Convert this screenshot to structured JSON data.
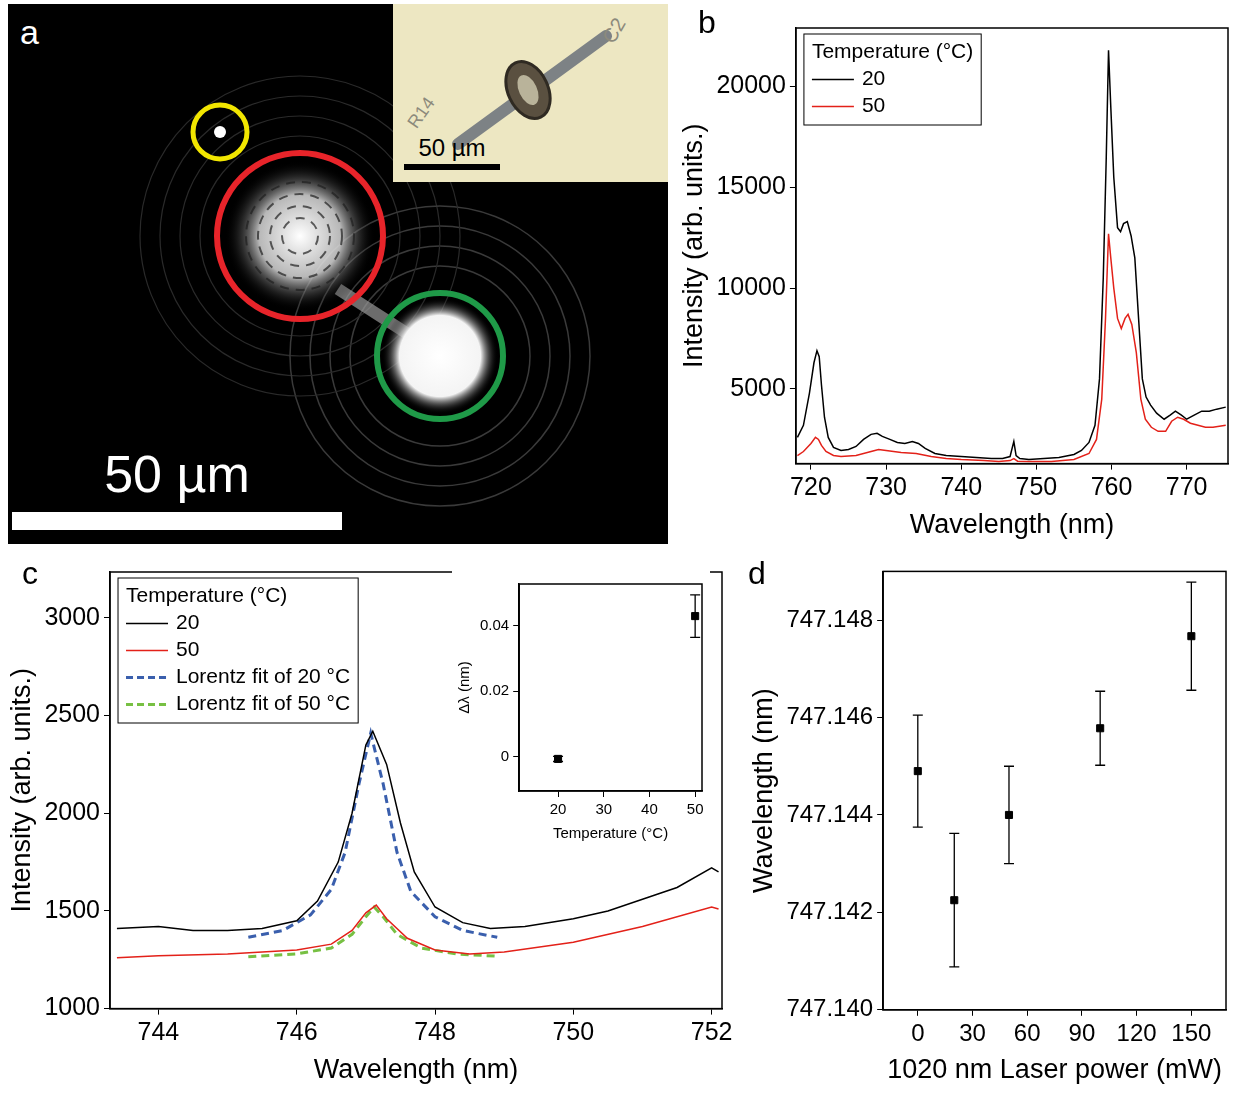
{
  "chart_data": [
    {
      "panel": "a",
      "type": "image",
      "scale_bar": "50 µm",
      "inset": {
        "scale_bar": "50 µm",
        "marks": [
          "C2",
          "R14"
        ]
      }
    },
    {
      "panel": "b",
      "type": "line",
      "x_label": "Wavelength (nm)",
      "y_label": "Intensity (arb. units.)",
      "xlim": [
        718,
        775.5
      ],
      "xticks": [
        720,
        730,
        740,
        750,
        760,
        770
      ],
      "ylim": [
        1300,
        22900
      ],
      "yticks": [
        5000,
        10000,
        15000,
        20000
      ],
      "grid": false,
      "legend": "upper left",
      "legend_title": "Temperature (°C)",
      "series": [
        {
          "name": "20",
          "color": "#000000",
          "x": [
            718.2,
            719,
            719.8,
            720.4,
            720.8,
            721.1,
            721.4,
            721.8,
            722.3,
            723,
            724,
            725,
            726,
            727,
            728,
            728.8,
            729.5,
            730.5,
            731.5,
            732.5,
            733.5,
            734.3,
            735.2,
            736.5,
            738,
            740,
            742,
            744,
            745.5,
            746.5,
            747,
            747.3,
            747.8,
            749,
            751,
            753,
            755,
            756,
            757,
            757.8,
            758.4,
            758.9,
            759.3,
            759.6,
            759.9,
            760.3,
            760.8,
            761.2,
            761.6,
            762.1,
            762.6,
            763.1,
            763.6,
            764.1,
            764.6,
            765.2,
            766,
            767,
            767.8,
            768.5,
            769.3,
            770,
            771,
            772,
            773,
            774,
            775.2
          ],
          "values": [
            2600,
            3200,
            4800,
            6300,
            6900,
            6600,
            5200,
            3600,
            2600,
            2100,
            1950,
            2000,
            2150,
            2500,
            2750,
            2800,
            2650,
            2500,
            2350,
            2300,
            2400,
            2300,
            2050,
            1800,
            1700,
            1650,
            1600,
            1550,
            1550,
            1650,
            2400,
            1700,
            1550,
            1500,
            1550,
            1600,
            1750,
            1950,
            2350,
            3200,
            5500,
            10500,
            16500,
            21800,
            19000,
            15500,
            13000,
            12800,
            13200,
            13300,
            12600,
            11500,
            8500,
            5500,
            4600,
            4200,
            3800,
            3500,
            3700,
            3900,
            3700,
            3500,
            3700,
            3900,
            3900,
            4000,
            4100
          ]
        },
        {
          "name": "50",
          "color": "#e32119",
          "x": [
            718.2,
            719,
            720,
            720.6,
            721,
            721.4,
            722,
            723,
            724,
            726,
            728,
            729,
            730,
            732,
            734,
            736,
            738,
            740,
            743,
            745,
            746.5,
            747,
            747.5,
            749,
            752,
            755,
            757,
            758,
            758.7,
            759.2,
            759.6,
            759.9,
            760.3,
            760.8,
            761.3,
            761.8,
            762.2,
            762.7,
            763.3,
            763.9,
            764.5,
            765.3,
            766.2,
            767.2,
            768,
            768.8,
            769.6,
            770.5,
            771.5,
            772.5,
            773.5,
            775.2
          ],
          "values": [
            1700,
            1900,
            2300,
            2600,
            2500,
            2200,
            1900,
            1700,
            1650,
            1700,
            1900,
            2000,
            1950,
            1850,
            1800,
            1650,
            1550,
            1500,
            1450,
            1400,
            1450,
            1550,
            1420,
            1400,
            1400,
            1500,
            1800,
            2500,
            4500,
            8500,
            12700,
            11500,
            10000,
            8500,
            8000,
            8500,
            8700,
            8200,
            6800,
            4500,
            3500,
            3100,
            2900,
            2900,
            3400,
            3600,
            3500,
            3300,
            3200,
            3100,
            3100,
            3200
          ]
        }
      ]
    },
    {
      "panel": "c",
      "type": "line",
      "x_label": "Wavelength (nm)",
      "y_label": "Intensity (arb. units.)",
      "xlim": [
        743.3,
        752.15
      ],
      "xticks": [
        744,
        746,
        748,
        750,
        752
      ],
      "ylim": [
        1000,
        3235
      ],
      "yticks": [
        1000,
        1500,
        2000,
        2500,
        3000
      ],
      "grid": false,
      "legend": "upper left",
      "legend_title": "Temperature (°C)",
      "series": [
        {
          "name": "20",
          "color": "#000000",
          "x": [
            743.4,
            744,
            744.5,
            745,
            745.5,
            746,
            746.3,
            746.6,
            746.8,
            747,
            747.1,
            747.3,
            747.5,
            747.7,
            748,
            748.4,
            748.8,
            749.3,
            750,
            750.5,
            751,
            751.5,
            752,
            752.1
          ],
          "values": [
            1410,
            1420,
            1400,
            1400,
            1410,
            1450,
            1550,
            1750,
            2000,
            2350,
            2420,
            2250,
            1950,
            1700,
            1520,
            1440,
            1410,
            1420,
            1460,
            1500,
            1560,
            1620,
            1720,
            1700
          ]
        },
        {
          "name": "50",
          "color": "#e32119",
          "x": [
            743.4,
            744,
            745,
            746,
            746.5,
            746.8,
            747,
            747.15,
            747.3,
            747.6,
            748,
            748.5,
            749,
            750,
            751,
            752,
            752.1
          ],
          "values": [
            1260,
            1270,
            1280,
            1300,
            1330,
            1400,
            1490,
            1530,
            1460,
            1360,
            1300,
            1280,
            1290,
            1340,
            1420,
            1520,
            1510
          ]
        },
        {
          "name": "Lorentz fit of 20 °C",
          "color": "#3a5fad",
          "line_style": "dashed",
          "x": [
            745.3,
            745.8,
            746.2,
            746.5,
            746.7,
            746.9,
            747.07,
            747.25,
            747.45,
            747.65,
            748,
            748.4,
            748.9
          ],
          "values": [
            1365,
            1400,
            1480,
            1610,
            1800,
            2150,
            2410,
            2150,
            1800,
            1600,
            1470,
            1400,
            1365
          ]
        },
        {
          "name": "Lorentz fit of 50 °C",
          "color": "#77c043",
          "line_style": "dashed",
          "x": [
            745.3,
            746,
            746.5,
            746.8,
            747,
            747.12,
            747.25,
            747.45,
            747.8,
            748.3,
            748.9
          ],
          "values": [
            1265,
            1280,
            1310,
            1380,
            1470,
            1520,
            1470,
            1380,
            1310,
            1280,
            1268
          ]
        }
      ],
      "inset": {
        "type": "scatter",
        "x_label": "Temperature (°C)",
        "y_label": "Δλ (nm)",
        "xlim": [
          11.5,
          51.5
        ],
        "xticks": [
          20,
          30,
          40,
          50
        ],
        "ylim": [
          -0.0105,
          0.0527
        ],
        "yticks": [
          0,
          0.02,
          0.04
        ],
        "grid": false,
        "marker": "square",
        "color": "#000000",
        "x": [
          20,
          50
        ],
        "values": [
          -0.0007,
          0.0429
        ],
        "error": [
          0.0008,
          0.0065
        ]
      }
    },
    {
      "panel": "d",
      "type": "scatter",
      "x_label": "1020 nm Laser power (mW)",
      "y_label": "Wavelength (nm)",
      "xlim": [
        -19,
        169
      ],
      "xticks": [
        0,
        30,
        60,
        90,
        120,
        150
      ],
      "ylim": [
        747.14,
        747.149
      ],
      "yticks": [
        {
          "value": 747.14,
          "label": "747.140"
        },
        747.142,
        747.144,
        747.146,
        747.148
      ],
      "grid": false,
      "marker": "square",
      "color": "#000000",
      "x": [
        0,
        20,
        50,
        100,
        150
      ],
      "values": [
        747.1449,
        747.14225,
        747.144,
        747.14578,
        747.14767
      ],
      "error": [
        0.00115,
        0.00137,
        0.001,
        0.00076,
        0.00111
      ]
    }
  ]
}
